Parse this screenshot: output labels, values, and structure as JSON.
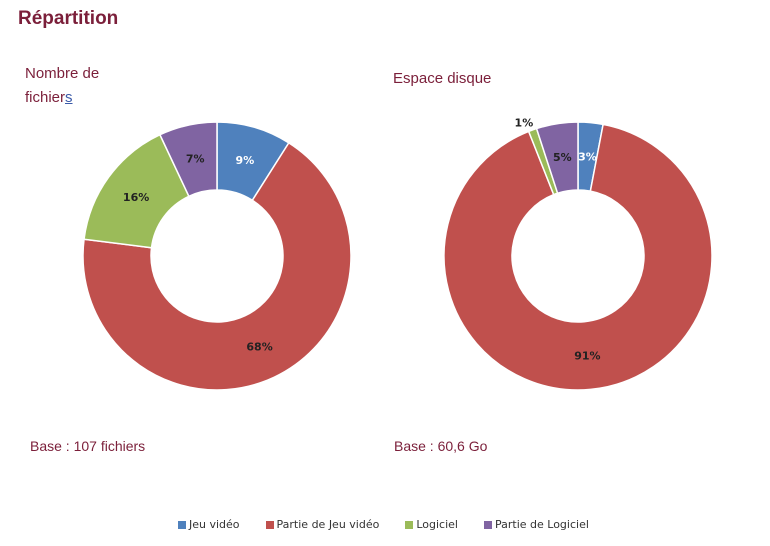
{
  "header": {
    "title": "Répartition"
  },
  "chart_data": [
    {
      "type": "pie",
      "subtype": "donut",
      "title_line1": "Nombre de",
      "title_line2_main": "fichier",
      "title_line2_tail": "s",
      "note": "Base : 107 fichiers",
      "categories": [
        "Jeu vidéo",
        "Partie de Jeu vidéo",
        "Logiciel",
        "Partie de Logiciel"
      ],
      "values": [
        9,
        68,
        16,
        7
      ],
      "labels": [
        "9%",
        "68%",
        "16%",
        "7%"
      ]
    },
    {
      "type": "pie",
      "subtype": "donut",
      "title": "Espace disque",
      "note": "Base : 60,6 Go",
      "categories": [
        "Jeu vidéo",
        "Partie de Jeu vidéo",
        "Logiciel",
        "Partie de Logiciel"
      ],
      "values": [
        3,
        91,
        1,
        5
      ],
      "labels": [
        "3%",
        "91%",
        "1%",
        "5%"
      ]
    }
  ],
  "legend": {
    "placement": "bottom",
    "items": [
      "Jeu vidéo",
      "Partie de Jeu vidéo",
      "Logiciel",
      "Partie de Logiciel"
    ]
  },
  "colors": [
    "#4f81bd",
    "#c0504d",
    "#9bbb59",
    "#8064a2"
  ]
}
